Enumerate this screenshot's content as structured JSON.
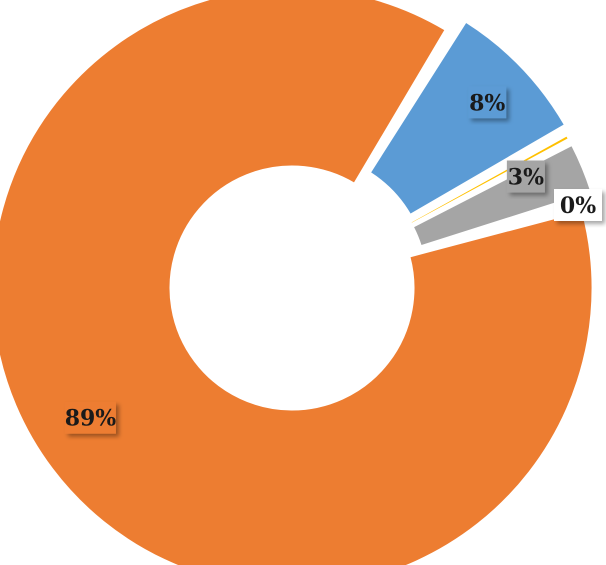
{
  "chart_data": {
    "type": "pie",
    "donut": true,
    "title": "",
    "legend": "none",
    "series": [
      {
        "label": "89%",
        "value": 89,
        "color": "#ED7D31"
      },
      {
        "label": "8%",
        "value": 8,
        "color": "#5B9BD5"
      },
      {
        "label": "0%",
        "value": 0.5,
        "color": "#FFC000"
      },
      {
        "label": "3%",
        "value": 3,
        "color": "#A5A5A5"
      },
      {
        "label": "",
        "value": 0.3,
        "color": "#EDEDED"
      }
    ],
    "data_labels": [
      "89%",
      "8%",
      "0%",
      "3%"
    ]
  }
}
